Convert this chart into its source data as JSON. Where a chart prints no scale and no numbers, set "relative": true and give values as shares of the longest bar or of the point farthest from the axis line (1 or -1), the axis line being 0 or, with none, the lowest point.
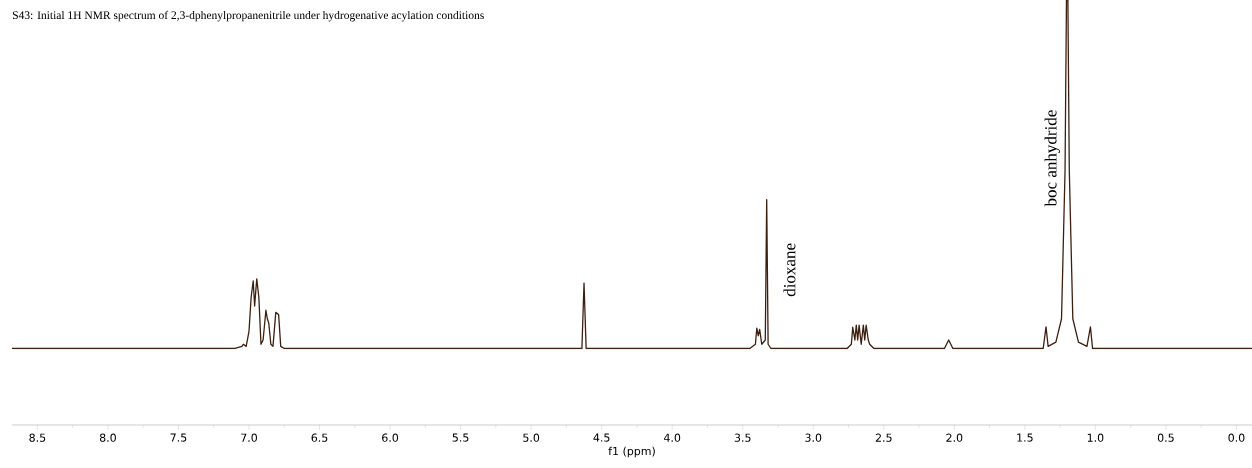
{
  "chart_data": {
    "type": "line",
    "title": "S43: Initial 1H NMR spectrum of 2,3-dphenylpropanenitrile under hydrogenative acylation conditions",
    "xlabel": "f1 (ppm)",
    "relative": true,
    "tick_labels": "x",
    "marker": "none",
    "line_style": "solid",
    "xlim": [
      8.68,
      -0.11
    ],
    "xticks": [
      {
        "value": 8.5,
        "label": "8.5"
      },
      {
        "value": 8.0,
        "label": "8.0"
      },
      {
        "value": 7.5,
        "label": "7.5"
      },
      {
        "value": 7.0,
        "label": "7.0"
      },
      {
        "value": 6.5,
        "label": "6.5"
      },
      {
        "value": 6.0,
        "label": "6.0"
      },
      {
        "value": 5.5,
        "label": "5.5"
      },
      {
        "value": 5.0,
        "label": "5.0"
      },
      {
        "value": 4.5,
        "label": "4.5"
      },
      {
        "value": 4.0,
        "label": "4.0"
      },
      {
        "value": 3.5,
        "label": "3.5"
      },
      {
        "value": 3.0,
        "label": "3.0"
      },
      {
        "value": 2.5,
        "label": "2.5"
      },
      {
        "value": 2.0,
        "label": "2.0"
      },
      {
        "value": 1.5,
        "label": "1.5"
      },
      {
        "value": 1.0,
        "label": "1.0"
      },
      {
        "value": 0.5,
        "label": "0.5"
      },
      {
        "value": 0.0,
        "label": "0.0"
      }
    ],
    "annotations": [
      "dioxane",
      "boc anhydride"
    ],
    "series": [
      {
        "color": "#3d1f10",
        "x": [
          8.68,
          7.1,
          7.05,
          7.04,
          7.02,
          7.0,
          6.985,
          6.97,
          6.96,
          6.945,
          6.93,
          6.915,
          6.9,
          6.88,
          6.87,
          6.86,
          6.845,
          6.83,
          6.81,
          6.79,
          6.775,
          6.75,
          4.64,
          4.625,
          4.61,
          3.45,
          3.41,
          3.4,
          3.39,
          3.38,
          3.365,
          3.34,
          3.33,
          3.32,
          3.3,
          2.76,
          2.73,
          2.72,
          2.705,
          2.695,
          2.685,
          2.675,
          2.66,
          2.645,
          2.635,
          2.625,
          2.61,
          2.6,
          2.57,
          2.07,
          2.04,
          2.01,
          1.37,
          1.35,
          1.335,
          1.28,
          1.24,
          1.215,
          1.205,
          1.195,
          1.185,
          1.16,
          1.12,
          1.06,
          1.035,
          1.02,
          -0.11
        ],
        "values": [
          0.18,
          0.18,
          0.185,
          0.19,
          0.185,
          0.22,
          0.3,
          0.339,
          0.28,
          0.344,
          0.3,
          0.19,
          0.2,
          0.27,
          0.25,
          0.24,
          0.19,
          0.185,
          0.265,
          0.26,
          0.185,
          0.18,
          0.18,
          0.334,
          0.18,
          0.18,
          0.19,
          0.228,
          0.21,
          0.225,
          0.19,
          0.2,
          0.53,
          0.19,
          0.18,
          0.18,
          0.19,
          0.23,
          0.2,
          0.235,
          0.2,
          0.235,
          0.19,
          0.235,
          0.2,
          0.235,
          0.2,
          0.19,
          0.18,
          0.18,
          0.2,
          0.18,
          0.18,
          0.231,
          0.185,
          0.195,
          0.25,
          0.6,
          1.0,
          1.0,
          0.6,
          0.25,
          0.195,
          0.185,
          0.231,
          0.18,
          0.18
        ]
      }
    ]
  }
}
